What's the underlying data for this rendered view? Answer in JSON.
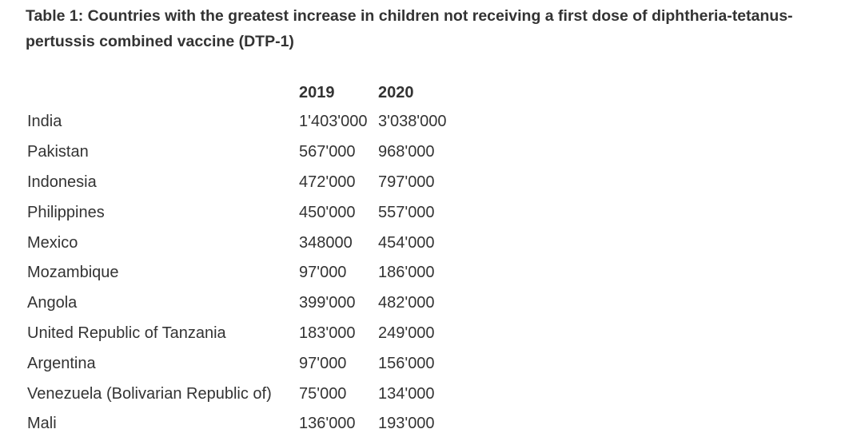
{
  "title": "Table 1: Countries with the greatest increase in children not receiving a first dose of diphtheria-tetanus-pertussis combined vaccine (DTP-1)",
  "table": {
    "headers": [
      "",
      "2019",
      "2020"
    ],
    "rows": [
      [
        "India",
        "1'403'000",
        "3'038'000"
      ],
      [
        "Pakistan",
        "567'000",
        "968'000"
      ],
      [
        "Indonesia",
        "472'000",
        "797'000"
      ],
      [
        "Philippines",
        "450'000",
        "557'000"
      ],
      [
        "Mexico",
        "348000",
        "454'000"
      ],
      [
        "Mozambique",
        "97'000",
        "186'000"
      ],
      [
        "Angola",
        "399'000",
        "482'000"
      ],
      [
        "United Republic of Tanzania",
        "183'000",
        "249'000"
      ],
      [
        "Argentina",
        "97'000",
        "156'000"
      ],
      [
        "Venezuela (Bolivarian Republic of)",
        "75'000",
        "134'000"
      ],
      [
        "Mali",
        "136'000",
        "193'000"
      ]
    ]
  }
}
